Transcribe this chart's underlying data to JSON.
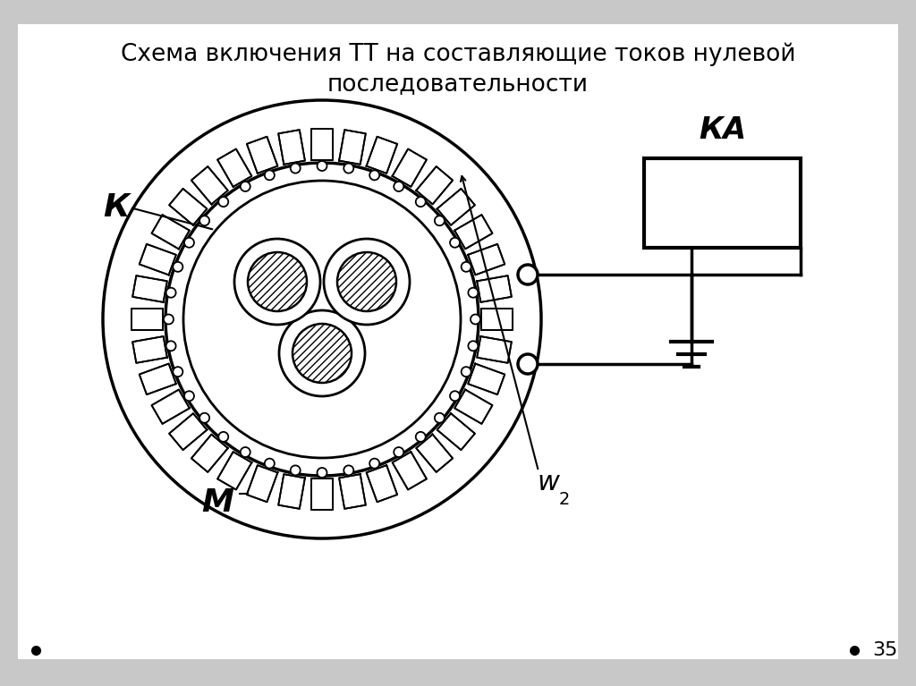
{
  "title": "Схема включения ТТ на составляющие токов нулевой\nпоследовательности",
  "title_fontsize": 19,
  "background_color": "#cccccc",
  "slide_bg": "#e8e8e8",
  "line_color": "#000000",
  "slide_number": "35",
  "label_K": "К",
  "label_M": "М",
  "label_w2": "w",
  "label_KA": "КА",
  "num_teeth": 36
}
